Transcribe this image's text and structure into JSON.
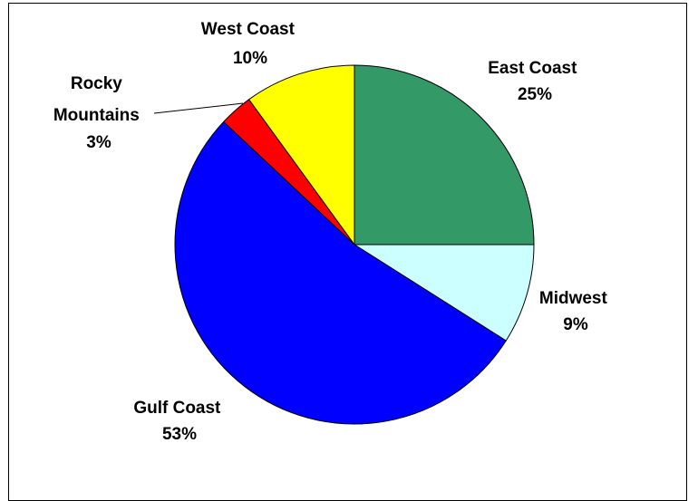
{
  "chart_data": {
    "type": "pie",
    "title": "",
    "slices": [
      {
        "name": "East Coast",
        "value": 25,
        "label_pct": "25%",
        "color": "#339966"
      },
      {
        "name": "Midwest",
        "value": 9,
        "label_pct": "9%",
        "color": "#CCFFFF"
      },
      {
        "name": "Gulf Coast",
        "value": 53,
        "label_pct": "53%",
        "color": "#0000FF"
      },
      {
        "name": "Rocky Mountains",
        "value": 3,
        "label_pct": "3%",
        "color": "#FF0000"
      },
      {
        "name": "West Coast",
        "value": 10,
        "label_pct": "10%",
        "color": "#FFFF00"
      }
    ],
    "start_angle_deg": 0,
    "direction": "clockwise",
    "legend": "none",
    "data_labels": "outside, name and percent"
  },
  "labels": {
    "east_coast": {
      "line1": "East Coast",
      "line2": "25%"
    },
    "midwest": {
      "line1": "Midwest",
      "line2": "9%"
    },
    "gulf_coast": {
      "line1": "Gulf Coast",
      "line2": "53%"
    },
    "rocky_mountains": {
      "line1": "Rocky",
      "line2": "Mountains",
      "line3": "3%"
    },
    "west_coast": {
      "line1": "West Coast",
      "line2": "10%"
    }
  }
}
